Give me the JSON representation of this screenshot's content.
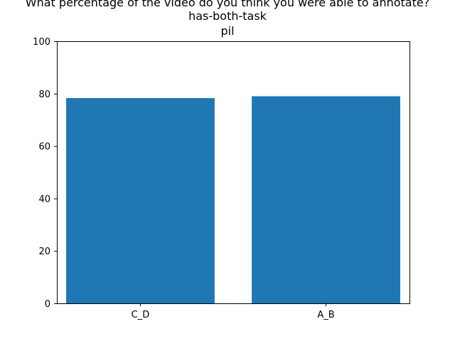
{
  "chart_data": {
    "type": "bar",
    "title_lines": [
      "What percentage of the video do you think you were able to annotate?",
      "has-both-task",
      "pil"
    ],
    "categories": [
      "C_D",
      "A_B"
    ],
    "values": [
      78.3,
      79.0
    ],
    "ylim": [
      0,
      100
    ],
    "yticks": [
      0,
      20,
      40,
      60,
      80,
      100
    ],
    "xlabel": "",
    "ylabel": "",
    "bar_color": "#1f77b4",
    "grid": false,
    "legend": "none"
  }
}
